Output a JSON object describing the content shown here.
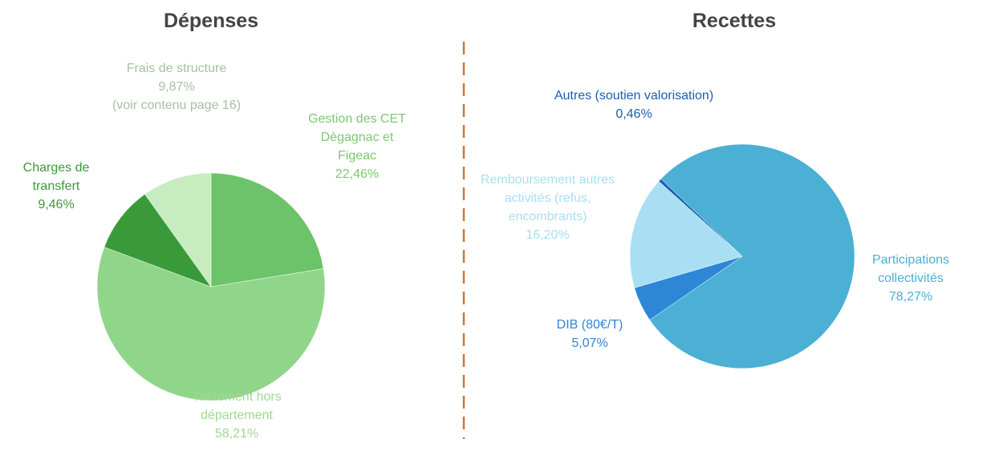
{
  "chart_data": [
    {
      "type": "pie",
      "title": "Dépenses",
      "categories": [
        "Gestion des CET Dègagnac et Figeac",
        "Traitement hors département",
        "Charges de transfert",
        "Frais de structure"
      ],
      "values": [
        22.46,
        58.21,
        9.46,
        9.87
      ],
      "value_labels": [
        "22,46%",
        "58,21%",
        "9,46%",
        "9,87%"
      ],
      "colors": [
        "#6cc36a",
        "#8fd68a",
        "#3a9a3a",
        "#c6ecc0"
      ],
      "label_colors": [
        "#7cc870",
        "#a0d890",
        "#3a9a3a",
        "#a8bfa2"
      ],
      "start_angle": 0,
      "annotations": [
        {
          "text": "(voir contenu page 16)"
        }
      ]
    },
    {
      "type": "pie",
      "title": "Recettes",
      "categories": [
        "Autres (soutien valorisation)",
        "Participations collectivités",
        "DIB (80€/T)",
        "Remboursement autres activités (refus, encombrants)"
      ],
      "values": [
        0.46,
        78.27,
        5.07,
        16.2
      ],
      "value_labels": [
        "0,46%",
        "78,27%",
        "5,07%",
        "16,20%"
      ],
      "colors": [
        "#1b5fb0",
        "#4bb0d4",
        "#2e86d6",
        "#a8dff2"
      ],
      "label_colors": [
        "#1b5fb0",
        "#4bb0d4",
        "#2e86d6",
        "#a8dff2"
      ],
      "start_angle": 312
    }
  ]
}
